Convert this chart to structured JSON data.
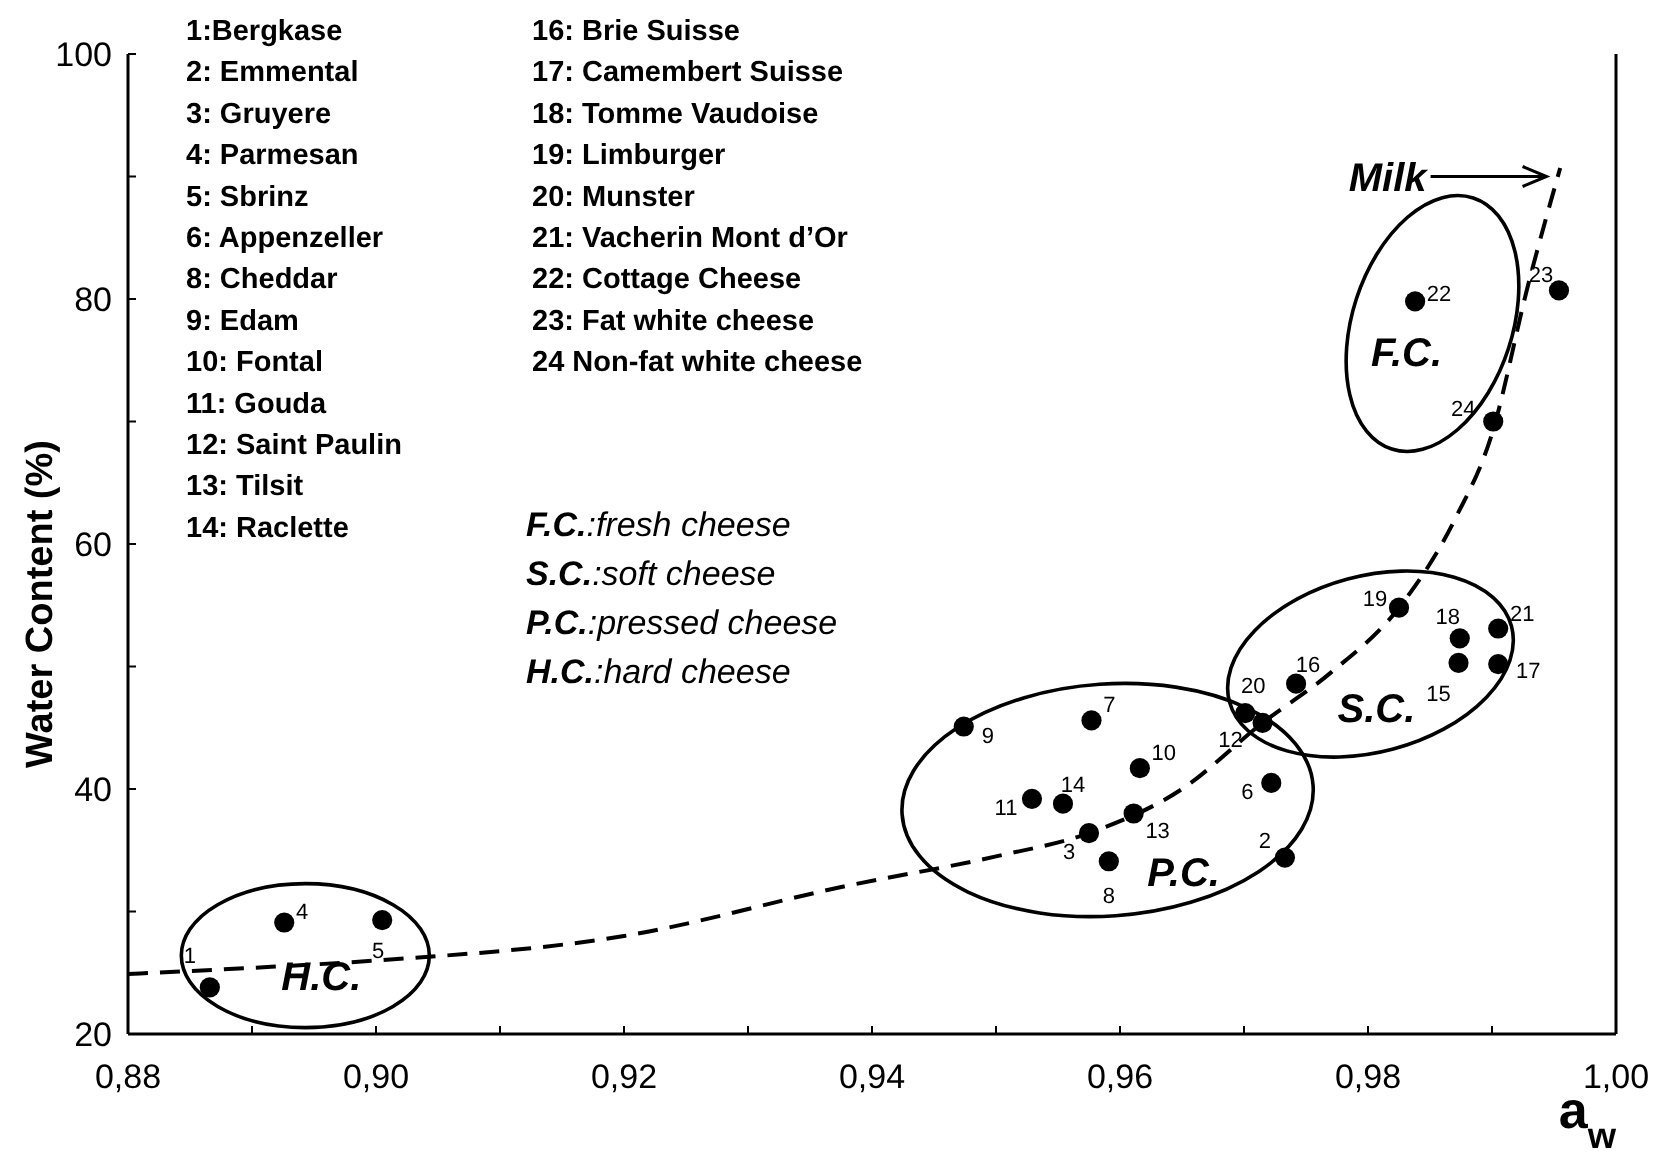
{
  "chart_data": {
    "type": "scatter",
    "xlabel": "a$_{w}$",
    "ylabel": "Water Content (%)",
    "xlim": [
      0.88,
      1.0
    ],
    "ylim": [
      20,
      100
    ],
    "xticks": [
      {
        "value": 0.88,
        "label": "0,88"
      },
      {
        "value": 0.89,
        "label": null
      },
      {
        "value": 0.9,
        "label": "0,90"
      },
      {
        "value": 0.91,
        "label": null
      },
      {
        "value": 0.92,
        "label": "0,92"
      },
      {
        "value": 0.93,
        "label": null
      },
      {
        "value": 0.94,
        "label": "0,94"
      },
      {
        "value": 0.95,
        "label": null
      },
      {
        "value": 0.96,
        "label": "0,96"
      },
      {
        "value": 0.97,
        "label": null
      },
      {
        "value": 0.98,
        "label": "0,98"
      },
      {
        "value": 0.99,
        "label": null
      },
      {
        "value": 1.0,
        "label": "1,00"
      }
    ],
    "yticks": [
      20,
      {
        "value": 30,
        "label": null
      },
      40,
      {
        "value": 50,
        "label": null
      },
      60,
      {
        "value": 70,
        "label": null
      },
      80,
      {
        "value": 90,
        "label": null
      },
      100
    ],
    "grid": false,
    "marker": "circle",
    "series": [
      {
        "color": "#000000",
        "x": [
          0.8866,
          0.9733,
          0.9575,
          0.8926,
          0.9005,
          0.9722,
          0.9577,
          0.9591,
          0.9474,
          0.9616,
          0.9529,
          0.9715,
          0.9611,
          0.9554,
          0.9873,
          0.9742,
          0.9905,
          0.9874,
          0.9825,
          0.9701,
          0.9905,
          0.9838,
          0.9954,
          0.9901
        ],
        "values": [
          23.8,
          34.4,
          36.4,
          29.1,
          29.3,
          40.5,
          45.6,
          34.1,
          45.1,
          41.7,
          39.2,
          45.4,
          38.0,
          38.8,
          50.3,
          48.6,
          50.2,
          52.3,
          54.8,
          46.2,
          53.1,
          79.8,
          80.7,
          70.0
        ]
      },
      {
        "type": "line",
        "color": "#000000",
        "line_style": "dashed",
        "marker": "none",
        "x": [
          0.88,
          0.89,
          0.9,
          0.92,
          0.938,
          0.95,
          0.9575,
          0.965,
          0.9715,
          0.977,
          0.9825,
          0.987,
          0.99,
          0.9929,
          0.9955
        ],
        "values": [
          24.9,
          25.4,
          26.0,
          28.0,
          32.1,
          34.5,
          36.4,
          40.0,
          45.4,
          49.5,
          54.8,
          62.0,
          69.0,
          81.1,
          90.7
        ]
      }
    ],
    "annotations": [
      "1:Bergkase",
      "2: Emmental",
      "3: Gruyere",
      "4: Parmesan",
      "5: Sbrinz",
      "6: Appenzeller",
      "8: Cheddar",
      "9: Edam",
      "10: Fontal",
      "11: Gouda",
      "12: Saint Paulin",
      "13: Tilsit",
      "14: Raclette",
      "16: Brie Suisse",
      "17: Camembert Suisse",
      "18: Tomme Vaudoise",
      "19: Limburger",
      "20: Munster",
      "21: Vacherin Mont d’Or",
      "22: Cottage Cheese",
      "23: Fat white cheese",
      "24 Non-fat white cheese",
      "F.C.:fresh cheese",
      "S.C.:soft cheese",
      "P.C.:pressed cheese",
      "H.C.:hard cheese",
      {
        "text": "1",
        "x": 0.8866,
        "y": 23.8
      },
      {
        "text": "2",
        "x": 0.9733,
        "y": 34.4
      },
      {
        "text": "3",
        "x": 0.9575,
        "y": 36.4
      },
      {
        "text": "4",
        "x": 0.8926,
        "y": 29.1
      },
      {
        "text": "5",
        "x": 0.9005,
        "y": 29.3
      },
      {
        "text": "6",
        "x": 0.9722,
        "y": 40.5
      },
      {
        "text": "7",
        "x": 0.9577,
        "y": 45.6
      },
      {
        "text": "8",
        "x": 0.9591,
        "y": 34.1
      },
      {
        "text": "9",
        "x": 0.9474,
        "y": 45.1
      },
      {
        "text": "10",
        "x": 0.9616,
        "y": 41.7
      },
      {
        "text": "11",
        "x": 0.9529,
        "y": 39.2
      },
      {
        "text": "12",
        "x": 0.9715,
        "y": 45.4
      },
      {
        "text": "13",
        "x": 0.9611,
        "y": 38.0
      },
      {
        "text": "14",
        "x": 0.9554,
        "y": 38.8
      },
      {
        "text": "15",
        "x": 0.9873,
        "y": 50.3
      },
      {
        "text": "16",
        "x": 0.9742,
        "y": 48.6
      },
      {
        "text": "17",
        "x": 0.9905,
        "y": 50.2
      },
      {
        "text": "18",
        "x": 0.9874,
        "y": 52.3
      },
      {
        "text": "19",
        "x": 0.9825,
        "y": 54.8
      },
      {
        "text": "20",
        "x": 0.9701,
        "y": 46.2
      },
      {
        "text": "21",
        "x": 0.9905,
        "y": 53.1
      },
      {
        "text": "22",
        "x": 0.9838,
        "y": 79.8
      },
      {
        "text": "23",
        "x": 0.9954,
        "y": 80.7
      },
      {
        "text": "24",
        "x": 0.9901,
        "y": 70.0
      },
      "H.C.",
      "P.C.",
      "S.C.",
      "F.C.",
      {
        "text": "Milk",
        "x": 0.9944,
        "y": 90.0
      }
    ]
  }
}
